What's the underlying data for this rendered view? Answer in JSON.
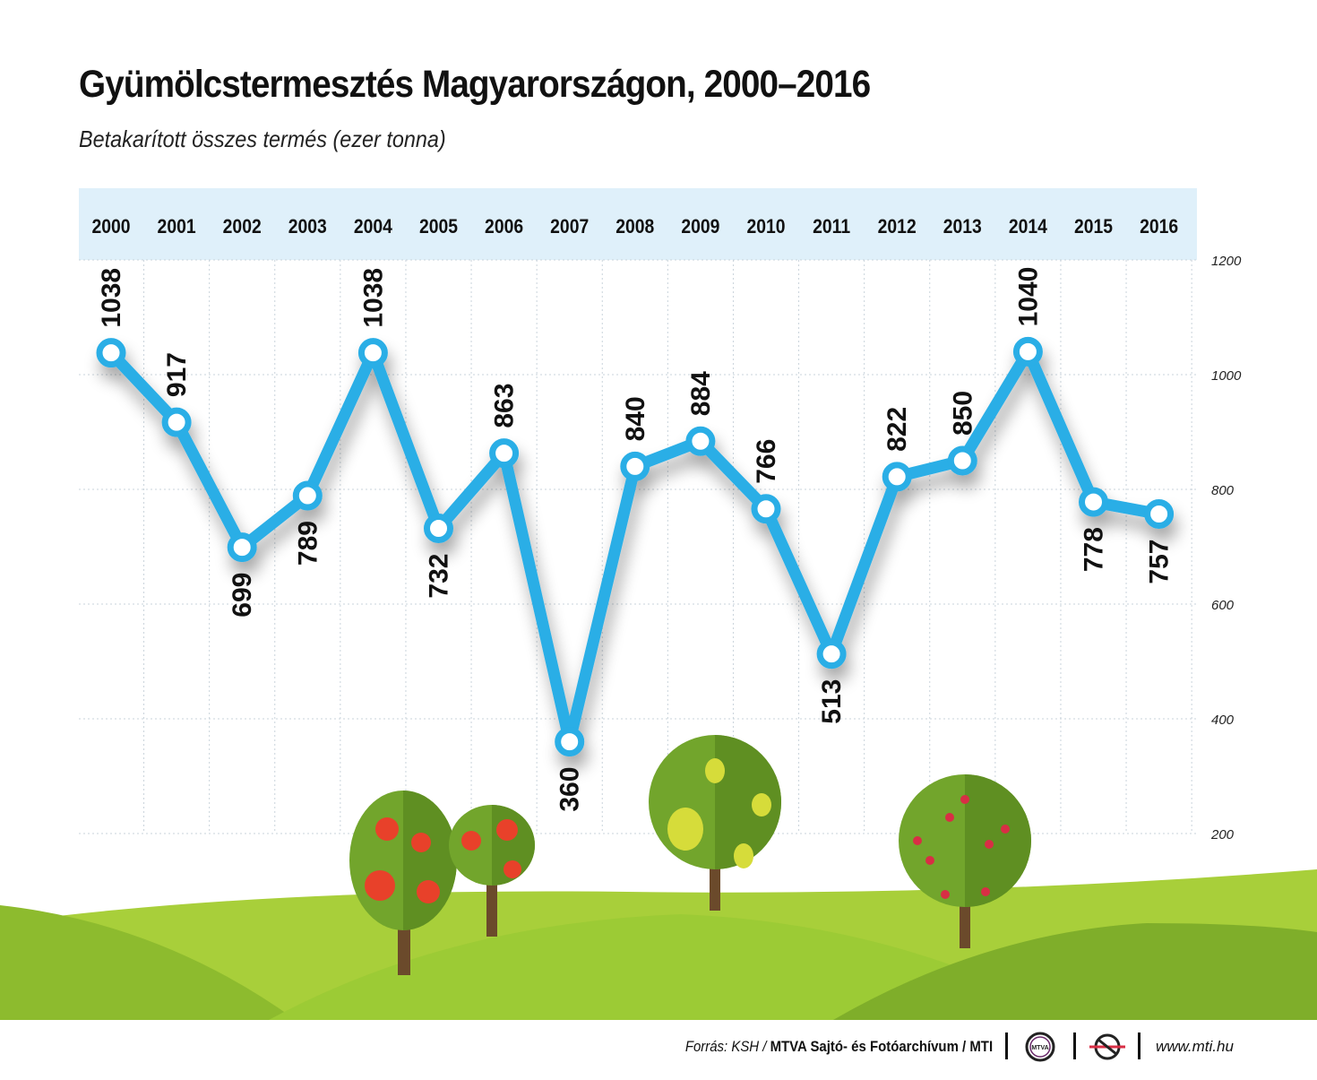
{
  "title": "Gyümölcstermesztés Magyarországon, 2000–2016",
  "subtitle": "Betakarított összes termés (ezer tonna)",
  "chart_data": {
    "type": "line",
    "x": [
      "2000",
      "2001",
      "2002",
      "2003",
      "2004",
      "2005",
      "2006",
      "2007",
      "2008",
      "2009",
      "2010",
      "2011",
      "2012",
      "2013",
      "2014",
      "2015",
      "2016"
    ],
    "series": [
      {
        "values": [
          1038,
          917,
          699,
          789,
          1038,
          732,
          863,
          360,
          840,
          884,
          766,
          513,
          822,
          850,
          1040,
          778,
          757
        ]
      }
    ],
    "label_position": [
      "above",
      "above",
      "below",
      "below",
      "above",
      "below",
      "above",
      "below",
      "above",
      "above",
      "above",
      "below",
      "above",
      "above",
      "above",
      "below",
      "below"
    ],
    "yticks": [
      "200",
      "400",
      "600",
      "800",
      "1000",
      "1200"
    ],
    "ylim": [
      200,
      1200
    ],
    "grid": true,
    "y_axis_side": "right",
    "x_axis_side": "top",
    "colors": {
      "line": "#29aee6",
      "marker_fill": "#ffffff",
      "header_band": "#dff0fa",
      "grid": "#c9d3db"
    }
  },
  "footer": {
    "source_prefix": "Forrás: KSH / ",
    "source_bold": "MTVA Sajtó- és Fotóarchívum / MTI",
    "logo_text": "MTVA",
    "website": "www.mti.hu"
  }
}
